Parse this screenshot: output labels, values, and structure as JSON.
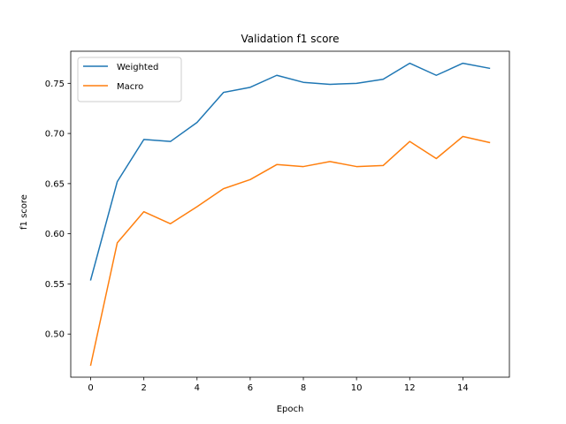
{
  "chart_data": {
    "type": "line",
    "title": "Validation f1 score",
    "xlabel": "Epoch",
    "ylabel": "f1 score",
    "xlim": [
      -0.75,
      15.75
    ],
    "ylim": [
      0.457,
      0.782
    ],
    "x": [
      0,
      1,
      2,
      3,
      4,
      5,
      6,
      7,
      8,
      9,
      10,
      11,
      12,
      13,
      14,
      15
    ],
    "xticks": [
      0,
      2,
      4,
      6,
      8,
      10,
      12,
      14
    ],
    "yticks": [
      0.5,
      0.55,
      0.6,
      0.65,
      0.7,
      0.75
    ],
    "ytick_labels": [
      "0.50",
      "0.55",
      "0.60",
      "0.65",
      "0.70",
      "0.75"
    ],
    "grid": false,
    "legend_position": "upper-left",
    "series": [
      {
        "name": "Weighted",
        "color": "#1f77b4",
        "values": [
          0.554,
          0.652,
          0.694,
          0.692,
          0.711,
          0.741,
          0.746,
          0.758,
          0.751,
          0.749,
          0.75,
          0.754,
          0.77,
          0.758,
          0.77,
          0.765
        ]
      },
      {
        "name": "Macro",
        "color": "#ff7f0e",
        "values": [
          0.469,
          0.591,
          0.622,
          0.61,
          0.627,
          0.645,
          0.654,
          0.669,
          0.667,
          0.672,
          0.667,
          0.668,
          0.692,
          0.675,
          0.697,
          0.691
        ]
      }
    ]
  }
}
